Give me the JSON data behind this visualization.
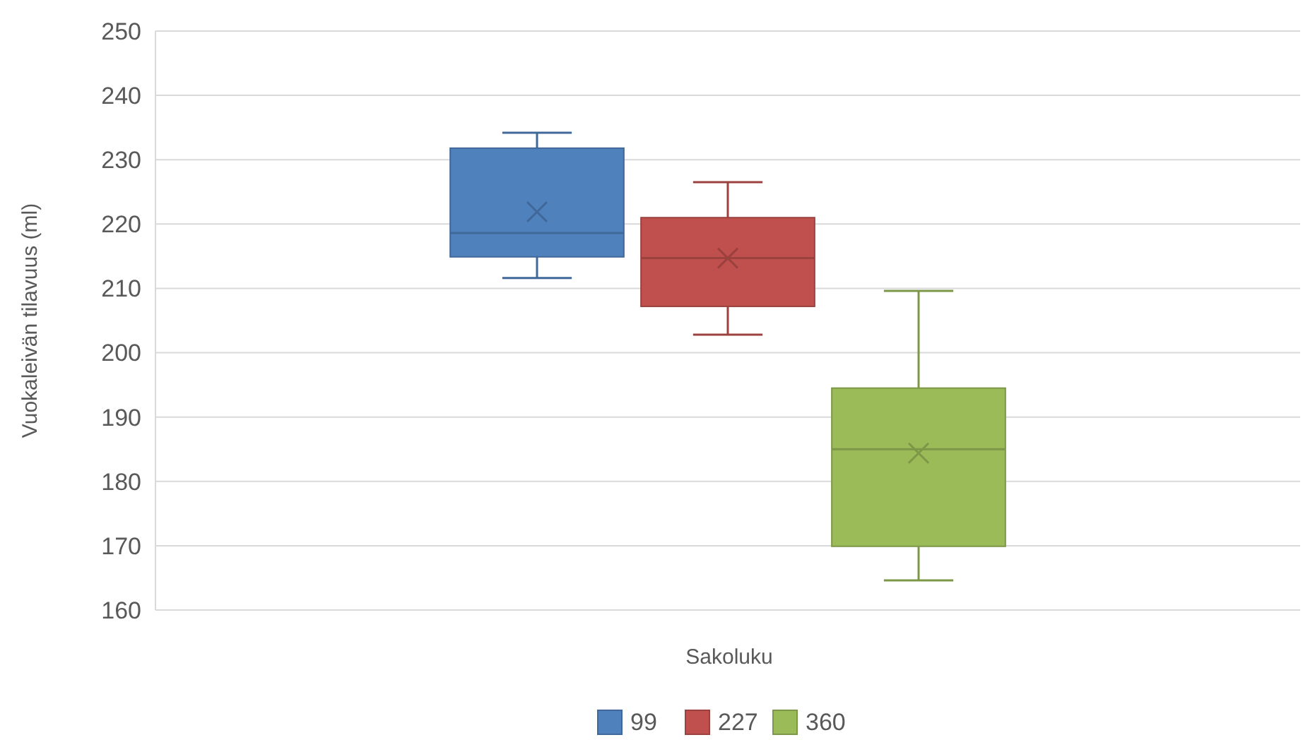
{
  "chart_data": {
    "type": "box",
    "ylabel": "Vuokaleivän tilavuus (ml)",
    "xlabel": "Sakoluku",
    "categories": [
      null
    ],
    "series": [
      {
        "name": "99",
        "color": "#4f81bd",
        "boxes": [
          {
            "low": 211.6,
            "q1": 214.9,
            "median": 218.6,
            "q3": 231.8,
            "high": 234.2,
            "mean": 221.9
          }
        ]
      },
      {
        "name": "227",
        "color": "#c0504d",
        "boxes": [
          {
            "low": 202.8,
            "q1": 207.2,
            "median": 214.7,
            "q3": 221,
            "high": 226.5,
            "mean": 214.7
          }
        ]
      },
      {
        "name": "360",
        "color": "#9bbb59",
        "boxes": [
          {
            "low": 164.6,
            "q1": 169.9,
            "median": 185,
            "q3": 194.5,
            "high": 209.6,
            "mean": 184.4
          }
        ]
      }
    ],
    "ylim": [
      160,
      250
    ],
    "yticks": [
      160,
      170,
      180,
      190,
      200,
      210,
      220,
      230,
      240,
      250
    ],
    "grid": "y",
    "legend": "bottom"
  }
}
